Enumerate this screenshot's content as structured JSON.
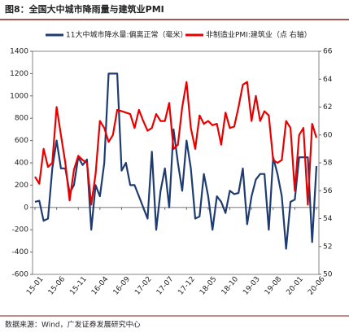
{
  "chart_data": {
    "type": "line",
    "title": "图8：全国大中城市降雨量与建筑业PMI",
    "source": "数据来源：Wind，广发证券发展研究中心",
    "categories": [
      "15-01",
      null,
      null,
      null,
      null,
      "15-06",
      null,
      null,
      null,
      null,
      "15-11",
      null,
      null,
      null,
      null,
      "16-04",
      null,
      null,
      null,
      null,
      "16-09",
      null,
      null,
      null,
      null,
      "17-02",
      null,
      null,
      null,
      null,
      "17-07",
      null,
      null,
      null,
      null,
      "17-12",
      null,
      null,
      null,
      null,
      "18-05",
      null,
      null,
      null,
      null,
      "18-10",
      null,
      null,
      null,
      null,
      "19-03",
      null,
      null,
      null,
      null,
      "19-08",
      null,
      null,
      null,
      null,
      "20-01",
      null,
      null,
      null,
      null,
      "20-06"
    ],
    "series": [
      {
        "name": "11大中城市降水量:偏离正常（毫米）",
        "color": "#1f3c72",
        "values": [
          50,
          60,
          -120,
          -100,
          350,
          600,
          350,
          350,
          130,
          200,
          450,
          380,
          430,
          -200,
          200,
          100,
          400,
          1200,
          1200,
          1200,
          330,
          400,
          200,
          200,
          100,
          0,
          -100,
          500,
          -200,
          150,
          350,
          0,
          700,
          400,
          150,
          600,
          350,
          -100,
          -80,
          300,
          100,
          -200,
          100,
          50,
          -50,
          150,
          120,
          130,
          350,
          -150,
          100,
          250,
          300,
          300,
          -200,
          450,
          300,
          100,
          -370,
          50,
          70,
          450,
          450,
          450,
          -310,
          370
        ]
      },
      {
        "name": "非制造业PMI:建筑业（点 右轴）",
        "color": "#e60000",
        "axis": "y2",
        "values": [
          57,
          56.5,
          59,
          57.7,
          58,
          62,
          60,
          58,
          55.3,
          57.5,
          58.5,
          58.2,
          58,
          55,
          57.2,
          61,
          60.5,
          59.5,
          60,
          61.8,
          61.7,
          61.6,
          61.5,
          60.5,
          61.8,
          61,
          60.3,
          60.5,
          61.5,
          61,
          61,
          62.3,
          59,
          59.3,
          62,
          63.8,
          60.5,
          59,
          61.4,
          60.8,
          61,
          60.7,
          60.8,
          59.3,
          61.6,
          60.5,
          60.6,
          62,
          63.6,
          63.8,
          61,
          62.8,
          61,
          61.7,
          61.4,
          58.2,
          58,
          58.2,
          61,
          60.5,
          56,
          60,
          60.5,
          55,
          60.8,
          59.8
        ]
      }
    ],
    "ylim": [
      -600,
      1400
    ],
    "yticks": [
      -600,
      -400,
      -200,
      0,
      200,
      400,
      600,
      800,
      1000,
      1200,
      1400
    ],
    "y2lim": [
      50,
      66
    ],
    "y2ticks": [
      50,
      52,
      54,
      56,
      58,
      60,
      62,
      64,
      66
    ]
  }
}
